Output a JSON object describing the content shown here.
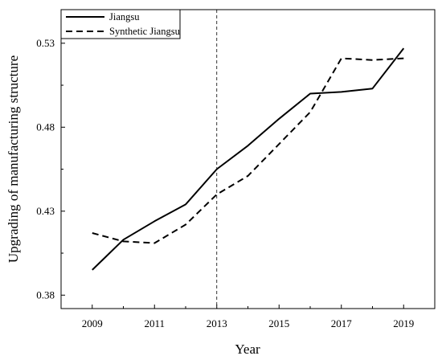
{
  "chart_data": {
    "type": "line",
    "xlabel": "Year",
    "ylabel": "Upgrading of manufacturing structure",
    "xlim": [
      2008,
      2020
    ],
    "ylim": [
      0.372,
      0.55
    ],
    "xticks": [
      "2009",
      "2011",
      "2013",
      "2015",
      "2017",
      "2019"
    ],
    "yticks": [
      "0.38",
      "0.43",
      "0.48",
      "0.53"
    ],
    "grid": false,
    "legend_position": "top-left",
    "reference_line": {
      "x": 2013,
      "style": "dashed"
    },
    "series": [
      {
        "name": "Jiangsu",
        "style": "solid",
        "color": "#000000",
        "x": [
          2009,
          2010,
          2011,
          2012,
          2013,
          2014,
          2015,
          2016,
          2017,
          2018,
          2019
        ],
        "y": [
          0.395,
          0.413,
          0.424,
          0.434,
          0.455,
          0.469,
          0.485,
          0.5,
          0.501,
          0.503,
          0.527
        ]
      },
      {
        "name": "Synthetic Jiangsu",
        "style": "dashed",
        "color": "#000000",
        "x": [
          2009,
          2010,
          2011,
          2012,
          2013,
          2014,
          2015,
          2016,
          2017,
          2018,
          2019
        ],
        "y": [
          0.417,
          0.412,
          0.411,
          0.422,
          0.44,
          0.451,
          0.47,
          0.489,
          0.521,
          0.52,
          0.521
        ]
      }
    ]
  }
}
